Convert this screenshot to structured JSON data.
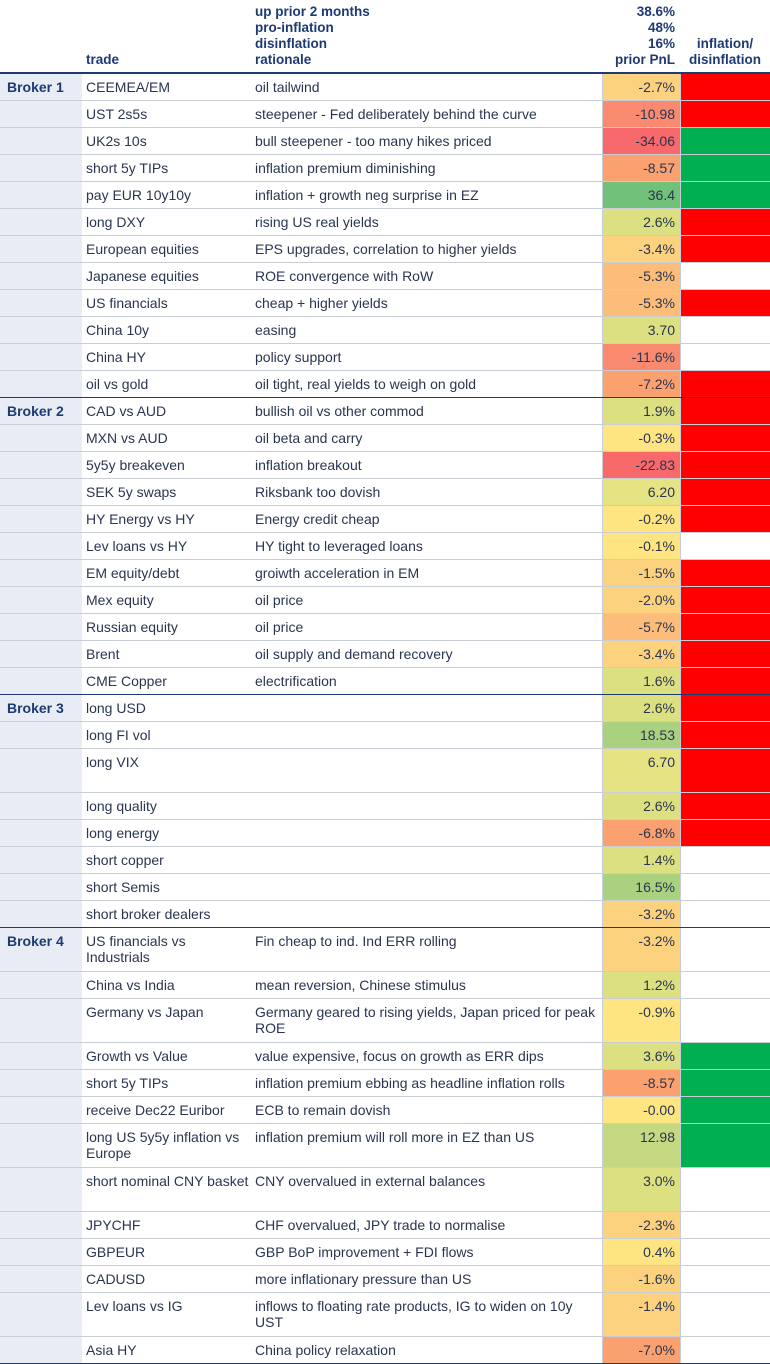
{
  "header": {
    "trade_label": "trade",
    "rationale_lines": [
      "up prior 2 months",
      "pro-inflation",
      "disinflation",
      "rationale"
    ],
    "pnl_lines": [
      "38.6%",
      "48%",
      "16%",
      "prior PnL"
    ],
    "flag_lines": [
      "inflation/",
      "disinflation"
    ]
  },
  "colors": {
    "inflation": "#ff0000",
    "disinflation": "#00b050",
    "broker_band": "#e8edf5",
    "header_text": "#1d3a73"
  },
  "groups": [
    {
      "name": "Broker 1",
      "rows": [
        {
          "trade": "CEEMEA/EM",
          "rationale": "oil tailwind",
          "pnl": "-2.7%",
          "pnl_value": -2.7,
          "flag": "inflation"
        },
        {
          "trade": "UST 2s5s",
          "rationale": "steepener - Fed deliberately behind the curve",
          "pnl": "-10.98",
          "pnl_value": -10.98,
          "flag": "inflation"
        },
        {
          "trade": "UK2s 10s",
          "rationale": "bull steepener - too many hikes priced",
          "pnl": "-34.06",
          "pnl_value": -34.06,
          "flag": "disinflation"
        },
        {
          "trade": "short 5y TIPs",
          "rationale": "inflation premium diminishing",
          "pnl": "-8.57",
          "pnl_value": -8.57,
          "flag": "disinflation"
        },
        {
          "trade": "pay EUR 10y10y",
          "rationale": "inflation + growth neg surprise in EZ",
          "pnl": "36.4",
          "pnl_value": 36.4,
          "flag": "disinflation"
        },
        {
          "trade": "long DXY",
          "rationale": "rising US real yields",
          "pnl": "2.6%",
          "pnl_value": 2.6,
          "flag": "inflation"
        },
        {
          "trade": "European equities",
          "rationale": "EPS upgrades, correlation to higher yields",
          "pnl": "-3.4%",
          "pnl_value": -3.4,
          "flag": "inflation"
        },
        {
          "trade": "Japanese equities",
          "rationale": "ROE convergence with RoW",
          "pnl": "-5.3%",
          "pnl_value": -5.3,
          "flag": ""
        },
        {
          "trade": "US financials",
          "rationale": "cheap + higher yields",
          "pnl": "-5.3%",
          "pnl_value": -5.3,
          "flag": "inflation"
        },
        {
          "trade": "China 10y",
          "rationale": "easing",
          "pnl": "3.70",
          "pnl_value": 3.7,
          "flag": ""
        },
        {
          "trade": "China HY",
          "rationale": "policy support",
          "pnl": "-11.6%",
          "pnl_value": -11.6,
          "flag": ""
        },
        {
          "trade": "oil vs gold",
          "rationale": "oil tight, real yields to weigh on gold",
          "pnl": "-7.2%",
          "pnl_value": -7.2,
          "flag": "inflation"
        }
      ]
    },
    {
      "name": "Broker 2",
      "rows": [
        {
          "trade": "CAD vs AUD",
          "rationale": "bullish oil vs other commod",
          "pnl": "1.9%",
          "pnl_value": 1.9,
          "flag": "inflation"
        },
        {
          "trade": "MXN vs AUD",
          "rationale": "oil beta and carry",
          "pnl": "-0.3%",
          "pnl_value": -0.3,
          "flag": "inflation"
        },
        {
          "trade": "5y5y breakeven",
          "rationale": "inflation breakout",
          "pnl": "-22.83",
          "pnl_value": -22.83,
          "flag": "inflation"
        },
        {
          "trade": "SEK 5y swaps",
          "rationale": "Riksbank too dovish",
          "pnl": "6.20",
          "pnl_value": 6.2,
          "flag": "inflation"
        },
        {
          "trade": "HY Energy vs HY",
          "rationale": "Energy credit cheap",
          "pnl": "-0.2%",
          "pnl_value": -0.2,
          "flag": "inflation"
        },
        {
          "trade": "Lev loans vs HY",
          "rationale": "HY tight to leveraged loans",
          "pnl": "-0.1%",
          "pnl_value": -0.1,
          "flag": ""
        },
        {
          "trade": "EM equity/debt",
          "rationale": "groiwth acceleration in EM",
          "pnl": "-1.5%",
          "pnl_value": -1.5,
          "flag": "inflation"
        },
        {
          "trade": "Mex equity",
          "rationale": "oil price",
          "pnl": "-2.0%",
          "pnl_value": -2.0,
          "flag": "inflation"
        },
        {
          "trade": "Russian equity",
          "rationale": "oil price",
          "pnl": "-5.7%",
          "pnl_value": -5.7,
          "flag": "inflation"
        },
        {
          "trade": "Brent",
          "rationale": "oil supply and demand recovery",
          "pnl": "-3.4%",
          "pnl_value": -3.4,
          "flag": "inflation"
        },
        {
          "trade": "CME Copper",
          "rationale": "electrification",
          "pnl": "1.6%",
          "pnl_value": 1.6,
          "flag": "inflation"
        }
      ]
    },
    {
      "name": "Broker 3",
      "rows": [
        {
          "trade": "long USD",
          "rationale": "",
          "pnl": "2.6%",
          "pnl_value": 2.6,
          "flag": "inflation"
        },
        {
          "trade": "long FI vol",
          "rationale": "",
          "pnl": "18.53",
          "pnl_value": 18.53,
          "flag": "inflation"
        },
        {
          "trade": "long VIX",
          "rationale": "",
          "pnl": "6.70",
          "pnl_value": 6.7,
          "flag": "inflation"
        },
        {
          "trade": "long quality",
          "rationale": "",
          "pnl": "2.6%",
          "pnl_value": 2.6,
          "flag": "inflation"
        },
        {
          "trade": "long energy",
          "rationale": "",
          "pnl": "-6.8%",
          "pnl_value": -6.8,
          "flag": "inflation"
        },
        {
          "trade": "short copper",
          "rationale": "",
          "pnl": "1.4%",
          "pnl_value": 1.4,
          "flag": ""
        },
        {
          "trade": "short Semis",
          "rationale": "",
          "pnl": "16.5%",
          "pnl_value": 16.5,
          "flag": ""
        },
        {
          "trade": "short broker dealers",
          "rationale": "",
          "pnl": "-3.2%",
          "pnl_value": -3.2,
          "flag": ""
        }
      ]
    },
    {
      "name": "Broker 4",
      "rows": [
        {
          "trade": "US financials vs Industrials",
          "rationale": "Fin cheap to ind. Ind ERR rolling",
          "pnl": "-3.2%",
          "pnl_value": -3.2,
          "flag": ""
        },
        {
          "trade": "China vs India",
          "rationale": "mean reversion, Chinese stimulus",
          "pnl": "1.2%",
          "pnl_value": 1.2,
          "flag": ""
        },
        {
          "trade": "Germany vs Japan",
          "rationale": "Germany geared to rising yields, Japan priced for peak ROE",
          "pnl": "-0.9%",
          "pnl_value": -0.9,
          "flag": ""
        },
        {
          "trade": "Growth vs Value",
          "rationale": "value expensive, focus on growth as ERR dips",
          "pnl": "3.6%",
          "pnl_value": 3.6,
          "flag": "disinflation"
        },
        {
          "trade": "short 5y TIPs",
          "rationale": "inflation premium ebbing as headline inflation rolls",
          "pnl": "-8.57",
          "pnl_value": -8.57,
          "flag": "disinflation"
        },
        {
          "trade": "receive Dec22 Euribor",
          "rationale": "ECB to remain dovish",
          "pnl": "-0.00",
          "pnl_value": 0.0,
          "flag": "disinflation"
        },
        {
          "trade": "long US 5y5y inflation vs Europe",
          "rationale": "inflation premium will roll more in EZ than US",
          "pnl": "12.98",
          "pnl_value": 12.98,
          "flag": "disinflation"
        },
        {
          "trade": "short nominal CNY basket",
          "rationale": "CNY overvalued in external balances",
          "pnl": "3.0%",
          "pnl_value": 3.0,
          "flag": ""
        },
        {
          "trade": "JPYCHF",
          "rationale": "CHF overvalued, JPY trade to normalise",
          "pnl": "-2.3%",
          "pnl_value": -2.3,
          "flag": ""
        },
        {
          "trade": "GBPEUR",
          "rationale": "GBP BoP improvement + FDI flows",
          "pnl": "0.4%",
          "pnl_value": 0.4,
          "flag": ""
        },
        {
          "trade": "CADUSD",
          "rationale": "more inflationary pressure than US",
          "pnl": "-1.6%",
          "pnl_value": -1.6,
          "flag": ""
        },
        {
          "trade": "Lev loans vs IG",
          "rationale": "inflows to floating rate products, IG to widen on 10y UST",
          "pnl": "-1.4%",
          "pnl_value": -1.4,
          "flag": ""
        },
        {
          "trade": "Asia HY",
          "rationale": "China policy relaxation",
          "pnl": "-7.0%",
          "pnl_value": -7.0,
          "flag": ""
        }
      ]
    }
  ]
}
